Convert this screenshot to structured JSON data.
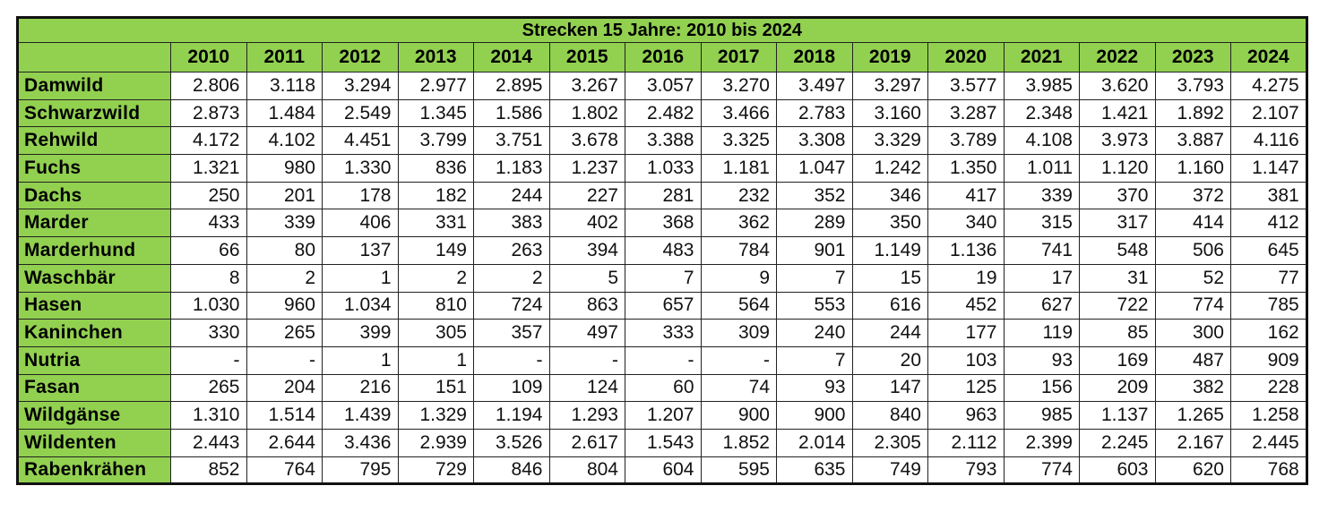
{
  "title": "Strecken 15 Jahre:  2010 bis 2024",
  "years": [
    "2010",
    "2011",
    "2012",
    "2013",
    "2014",
    "2015",
    "2016",
    "2017",
    "2018",
    "2019",
    "2020",
    "2021",
    "2022",
    "2023",
    "2024"
  ],
  "rows": [
    {
      "label": "Damwild",
      "values": [
        "2.806",
        "3.118",
        "3.294",
        "2.977",
        "2.895",
        "3.267",
        "3.057",
        "3.270",
        "3.497",
        "3.297",
        "3.577",
        "3.985",
        "3.620",
        "3.793",
        "4.275"
      ]
    },
    {
      "label": "Schwarzwild",
      "values": [
        "2.873",
        "1.484",
        "2.549",
        "1.345",
        "1.586",
        "1.802",
        "2.482",
        "3.466",
        "2.783",
        "3.160",
        "3.287",
        "2.348",
        "1.421",
        "1.892",
        "2.107"
      ]
    },
    {
      "label": "Rehwild",
      "values": [
        "4.172",
        "4.102",
        "4.451",
        "3.799",
        "3.751",
        "3.678",
        "3.388",
        "3.325",
        "3.308",
        "3.329",
        "3.789",
        "4.108",
        "3.973",
        "3.887",
        "4.116"
      ]
    },
    {
      "label": "Fuchs",
      "values": [
        "1.321",
        "980",
        "1.330",
        "836",
        "1.183",
        "1.237",
        "1.033",
        "1.181",
        "1.047",
        "1.242",
        "1.350",
        "1.011",
        "1.120",
        "1.160",
        "1.147"
      ]
    },
    {
      "label": "Dachs",
      "values": [
        "250",
        "201",
        "178",
        "182",
        "244",
        "227",
        "281",
        "232",
        "352",
        "346",
        "417",
        "339",
        "370",
        "372",
        "381"
      ]
    },
    {
      "label": "Marder",
      "values": [
        "433",
        "339",
        "406",
        "331",
        "383",
        "402",
        "368",
        "362",
        "289",
        "350",
        "340",
        "315",
        "317",
        "414",
        "412"
      ]
    },
    {
      "label": "Marderhund",
      "values": [
        "66",
        "80",
        "137",
        "149",
        "263",
        "394",
        "483",
        "784",
        "901",
        "1.149",
        "1.136",
        "741",
        "548",
        "506",
        "645"
      ]
    },
    {
      "label": "Waschbär",
      "values": [
        "8",
        "2",
        "1",
        "2",
        "2",
        "5",
        "7",
        "9",
        "7",
        "15",
        "19",
        "17",
        "31",
        "52",
        "77"
      ]
    },
    {
      "label": "Hasen",
      "values": [
        "1.030",
        "960",
        "1.034",
        "810",
        "724",
        "863",
        "657",
        "564",
        "553",
        "616",
        "452",
        "627",
        "722",
        "774",
        "785"
      ]
    },
    {
      "label": "Kaninchen",
      "values": [
        "330",
        "265",
        "399",
        "305",
        "357",
        "497",
        "333",
        "309",
        "240",
        "244",
        "177",
        "119",
        "85",
        "300",
        "162"
      ]
    },
    {
      "label": "Nutria",
      "values": [
        "-",
        "-",
        "1",
        "1",
        "-",
        "-",
        "-",
        "-",
        "7",
        "20",
        "103",
        "93",
        "169",
        "487",
        "909"
      ]
    },
    {
      "label": "Fasan",
      "values": [
        "265",
        "204",
        "216",
        "151",
        "109",
        "124",
        "60",
        "74",
        "93",
        "147",
        "125",
        "156",
        "209",
        "382",
        "228"
      ]
    },
    {
      "label": "Wildgänse",
      "values": [
        "1.310",
        "1.514",
        "1.439",
        "1.329",
        "1.194",
        "1.293",
        "1.207",
        "900",
        "900",
        "840",
        "963",
        "985",
        "1.137",
        "1.265",
        "1.258"
      ]
    },
    {
      "label": "Wildenten",
      "values": [
        "2.443",
        "2.644",
        "3.436",
        "2.939",
        "3.526",
        "2.617",
        "1.543",
        "1.852",
        "2.014",
        "2.305",
        "2.112",
        "2.399",
        "2.245",
        "2.167",
        "2.445"
      ]
    },
    {
      "label": "Rabenkrähen",
      "values": [
        "852",
        "764",
        "795",
        "729",
        "846",
        "804",
        "604",
        "595",
        "635",
        "749",
        "793",
        "774",
        "603",
        "620",
        "768"
      ]
    }
  ],
  "colors": {
    "header_green": "#92d050",
    "border": "#111111"
  }
}
